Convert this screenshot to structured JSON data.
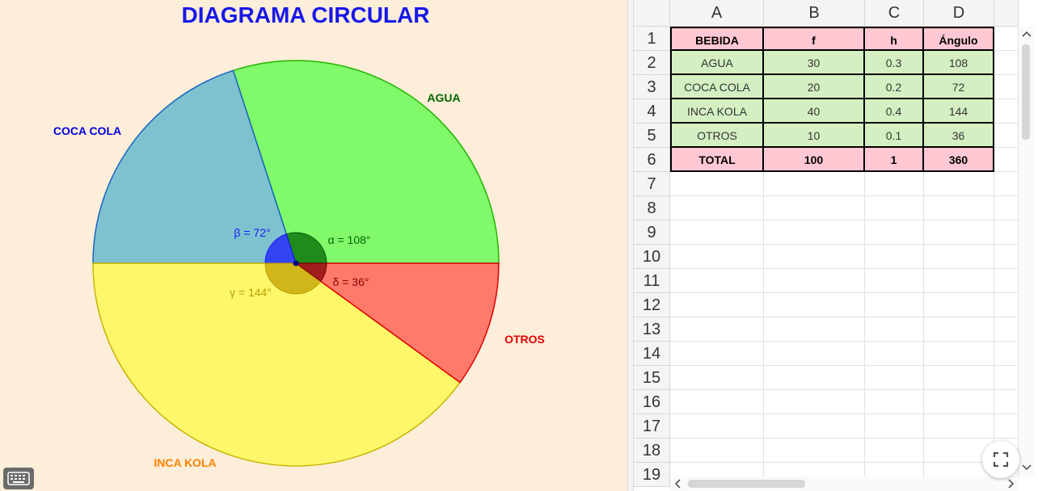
{
  "graphics": {
    "title": "DIAGRAMA CIRCULAR",
    "title_color": "#1818e8",
    "slices": [
      {
        "name": "AGUA",
        "label": "AGUA",
        "angle_label": "α = 108°",
        "value": 30,
        "start_deg": 0,
        "end_deg": 108,
        "fill": "#80f96a",
        "stroke": "#21b400",
        "label_color": "#006400",
        "angle_color": "#006400",
        "arc_color": "#006400"
      },
      {
        "name": "COCA COLA",
        "label": "COCA COLA",
        "angle_label": "β = 72°",
        "value": 20,
        "start_deg": 108,
        "end_deg": 180,
        "fill": "#7fc2cf",
        "stroke": "#1565c0",
        "label_color": "#0000e0",
        "angle_color": "#1a1aff",
        "arc_color": "#1a1aff"
      },
      {
        "name": "INCA KOLA",
        "label": "INCA KOLA",
        "angle_label": "γ = 144°",
        "value": 40,
        "start_deg": 180,
        "end_deg": 324,
        "fill": "#fff76a",
        "stroke": "#c8b400",
        "label_color": "#ff8000",
        "angle_color": "#b8a000",
        "arc_color": "#c0a000"
      },
      {
        "name": "OTROS",
        "label": "OTROS",
        "angle_label": "δ = 36°",
        "value": 10,
        "start_deg": 324,
        "end_deg": 360,
        "fill": "#ff7a6b",
        "stroke": "#e00000",
        "label_color": "#e00000",
        "angle_color": "#8b0000",
        "arc_color": "#800000"
      }
    ],
    "center_point_color": "#00007f"
  },
  "spreadsheet": {
    "columns": [
      "A",
      "B",
      "C",
      "D"
    ],
    "rows": [
      "1",
      "2",
      "3",
      "4",
      "5",
      "6",
      "7",
      "8",
      "9",
      "10",
      "11",
      "12",
      "13",
      "14",
      "15",
      "16",
      "17",
      "18",
      "19"
    ],
    "header": [
      "BEBIDA",
      "f",
      "h",
      "Ángulo"
    ],
    "body": [
      [
        "AGUA",
        "30",
        "0.3",
        "108"
      ],
      [
        "COCA COLA",
        "20",
        "0.2",
        "72"
      ],
      [
        "INCA KOLA",
        "40",
        "0.4",
        "144"
      ],
      [
        "OTROS",
        "10",
        "0.1",
        "36"
      ]
    ],
    "total": [
      "TOTAL",
      "100",
      "1",
      "360"
    ],
    "header_bg": "#ffc8d2",
    "body_bg": "#d4f0c2"
  },
  "controls": {
    "keyboard_icon": "keyboard-icon",
    "fullscreen_icon": "fullscreen-icon",
    "scroll_up_icon": "chevron-up-icon",
    "scroll_down_icon": "chevron-down-icon",
    "scroll_left_icon": "chevron-left-icon",
    "scroll_right_icon": "chevron-right-icon"
  }
}
